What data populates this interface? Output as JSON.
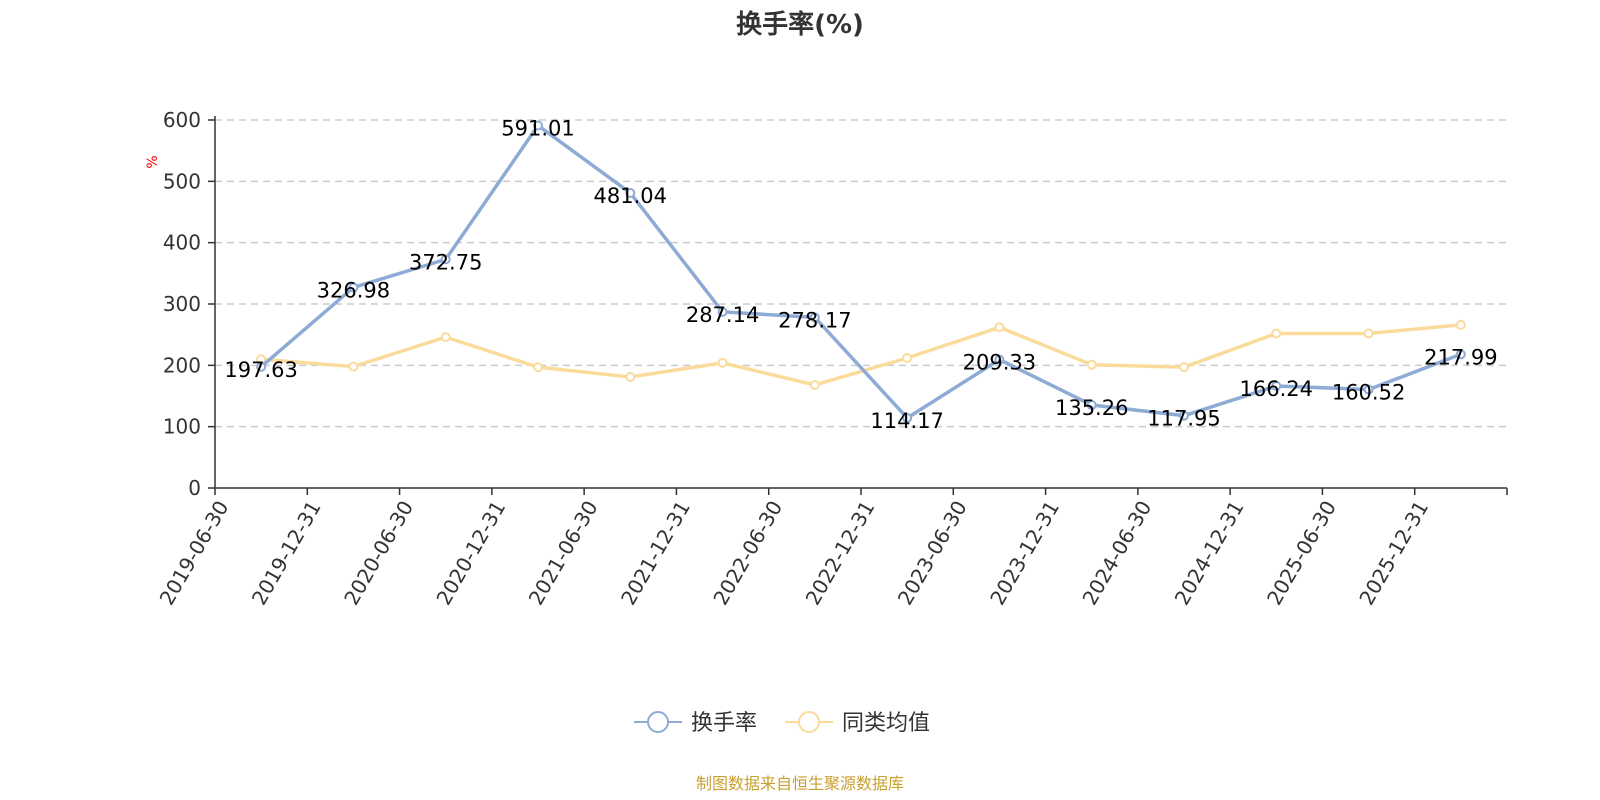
{
  "chart_data": {
    "type": "line",
    "title": "换手率(%)",
    "ylabel": "%",
    "ylim": [
      0,
      600
    ],
    "yticks": [
      0,
      100,
      200,
      300,
      400,
      500,
      600
    ],
    "grid": true,
    "legend_position": "bottom-center",
    "categories": [
      "2019-06-30",
      "2019-12-31",
      "2020-06-30",
      "2020-12-31",
      "2021-06-30",
      "2021-12-31",
      "2022-06-30",
      "2022-12-31",
      "2023-06-30",
      "2023-12-31",
      "2024-06-30",
      "2024-12-31",
      "2025-06-30",
      "2025-12-31"
    ],
    "series": [
      {
        "name": "换手率",
        "color": "#8eabd6",
        "show_labels": true,
        "values": [
          197.63,
          326.98,
          372.75,
          591.01,
          481.04,
          287.14,
          278.17,
          114.17,
          209.33,
          135.26,
          117.95,
          166.24,
          160.52,
          217.99
        ]
      },
      {
        "name": "同类均值",
        "color": "#fbdb9c",
        "show_labels": false,
        "values": [
          210,
          198,
          246,
          197,
          181,
          204,
          168,
          212,
          262,
          201,
          197,
          252,
          252,
          266
        ]
      }
    ],
    "source": "制图数据来自恒生聚源数据库",
    "source_color": "#c8a030",
    "unit_color": "#ff0000"
  }
}
